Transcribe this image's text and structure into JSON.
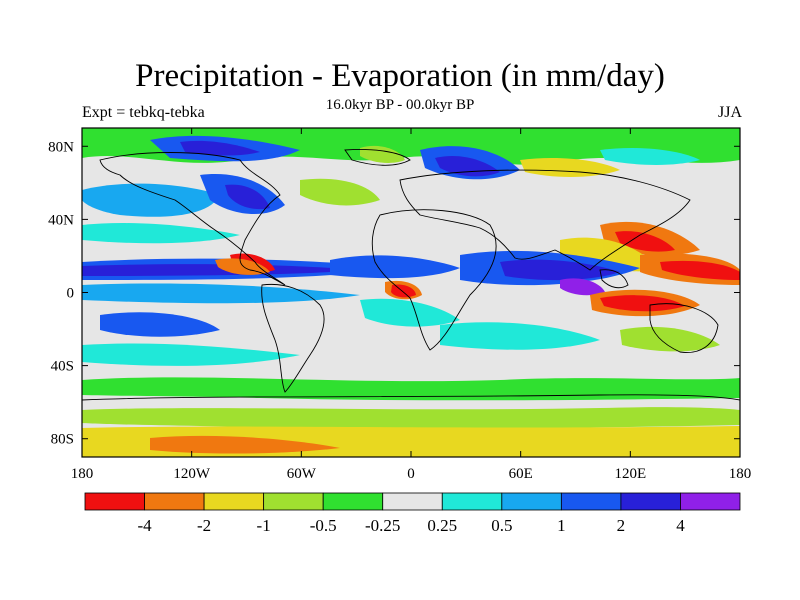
{
  "title": "Precipitation - Evaporation (in mm/day)",
  "subtitle": "16.0kyr BP - 00.0kyr BP",
  "left_label": "Expt = tebkq-tebka",
  "right_label": "JJA",
  "map": {
    "projection": "cylindrical-equidistant",
    "lon_range": [
      -180,
      180
    ],
    "lat_range": [
      -90,
      90
    ],
    "x_ticks": [
      {
        "value": -180,
        "label": "180"
      },
      {
        "value": -120,
        "label": "120W"
      },
      {
        "value": -60,
        "label": "60W"
      },
      {
        "value": 0,
        "label": "0"
      },
      {
        "value": 60,
        "label": "60E"
      },
      {
        "value": 120,
        "label": "120E"
      },
      {
        "value": 180,
        "label": "180"
      }
    ],
    "y_ticks": [
      {
        "value": 80,
        "label": "80N"
      },
      {
        "value": 40,
        "label": "40N"
      },
      {
        "value": 0,
        "label": "0"
      },
      {
        "value": -40,
        "label": "40S"
      },
      {
        "value": -80,
        "label": "80S"
      }
    ]
  },
  "colorbar": {
    "colors": [
      "#f01010",
      "#f07810",
      "#e8d820",
      "#a0e030",
      "#30e030",
      "#e6e6e6",
      "#20e8d8",
      "#18a8f0",
      "#1858f0",
      "#2820d8",
      "#9020e8"
    ],
    "labels": [
      "-4",
      "-2",
      "-1",
      "-0.5",
      "-0.25",
      "0.25",
      "0.5",
      "1",
      "2",
      "4"
    ]
  }
}
